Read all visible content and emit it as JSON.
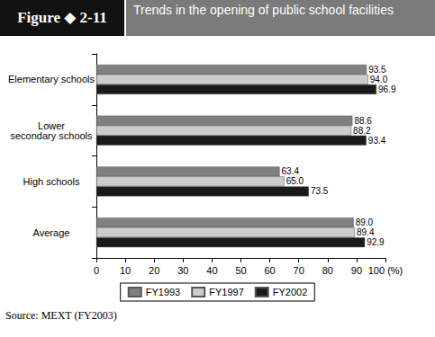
{
  "chart_data": {
    "type": "bar",
    "orientation": "horizontal",
    "figure": "Figure ◆ 2-11",
    "title": "Trends in the opening of public school facilities",
    "source": "Source: MEXT (FY2003)",
    "categories": [
      "Elementary schools",
      "Lower\nsecondary schools",
      "High schools",
      "Average"
    ],
    "series": [
      {
        "name": "FY1993",
        "color": "#808080",
        "values": [
          93.5,
          88.6,
          63.4,
          89.0
        ],
        "value_labels": [
          "93.5",
          "88.6",
          "63.4",
          "89.0"
        ]
      },
      {
        "name": "FY1997",
        "color": "#cccccc",
        "values": [
          94.0,
          88.2,
          65.0,
          89.4
        ],
        "value_labels": [
          "94.0",
          "88.2",
          "65.0",
          "89.4"
        ]
      },
      {
        "name": "FY2002",
        "color": "#1a1a1a",
        "values": [
          96.9,
          93.4,
          73.5,
          92.9
        ],
        "value_labels": [
          "96.9",
          "93.4",
          "73.5",
          "92.9"
        ]
      }
    ],
    "xlim": [
      0,
      100
    ],
    "xticks": [
      0,
      10,
      20,
      30,
      40,
      50,
      60,
      70,
      80,
      90,
      {
        "value": 100,
        "label": "100 (%)"
      }
    ],
    "grid": false,
    "legend": "bottom",
    "data_labels": true
  }
}
